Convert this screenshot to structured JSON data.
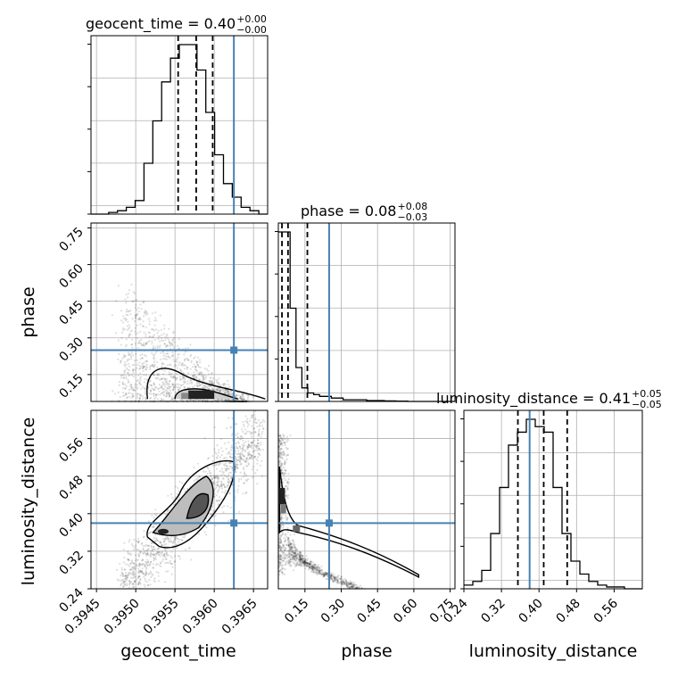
{
  "chart_data": {
    "type": "corner",
    "parameters": [
      "geocent_time",
      "phase",
      "luminosity_distance"
    ],
    "truths": {
      "geocent_time": 0.39625,
      "phase": 0.25,
      "luminosity_distance": 0.38
    },
    "titles": [
      {
        "param": "geocent_time",
        "text": "geocent_time = 0.40",
        "sup": "+0.00",
        "sub": "−0.00"
      },
      {
        "param": "phase",
        "text": "phase = 0.08",
        "sup": "+0.08",
        "sub": "−0.03"
      },
      {
        "param": "luminosity_distance",
        "text": "luminosity_distance = 0.41",
        "sup": "+0.05",
        "sub": "−0.05"
      }
    ],
    "axes": {
      "geocent_time": {
        "label": "geocent_time",
        "range": [
          0.39443,
          0.39668
        ],
        "ticks": [
          "0.3945",
          "0.3950",
          "0.3955",
          "0.3960",
          "0.3965"
        ]
      },
      "phase": {
        "label": "phase",
        "range": [
          0.04,
          0.77
        ],
        "ticks": [
          "0.15",
          "0.30",
          "0.45",
          "0.60",
          "0.75"
        ]
      },
      "luminosity_distance": {
        "label": "luminosity_distance",
        "range": [
          0.24,
          0.62
        ],
        "ticks": [
          "0.24",
          "0.32",
          "0.40",
          "0.48",
          "0.56"
        ]
      }
    },
    "quantiles": {
      "geocent_time": [
        0.39554,
        0.39577,
        0.39598
      ],
      "phase": [
        0.055,
        0.08,
        0.16
      ],
      "luminosity_distance": [
        0.355,
        0.41,
        0.46
      ]
    },
    "histograms": {
      "geocent_time": {
        "edges_range": [
          0.39443,
          0.39668
        ],
        "bins": 20,
        "counts": [
          0,
          0,
          1,
          2,
          4,
          8,
          30,
          55,
          78,
          92,
          100,
          100,
          85,
          60,
          35,
          18,
          10,
          4,
          2,
          0
        ]
      },
      "phase": {
        "edges_range": [
          0.04,
          0.77
        ],
        "bins": 30,
        "counts": [
          100,
          100,
          55,
          20,
          8,
          5,
          4,
          3,
          3,
          2,
          2,
          1,
          1,
          1,
          1,
          0.5,
          0.5,
          0.5,
          0.3,
          0.3,
          0.2,
          0.2,
          0,
          0,
          0,
          0,
          0,
          0,
          0,
          0
        ]
      },
      "luminosity_distance": {
        "edges_range": [
          0.24,
          0.62
        ],
        "bins": 20,
        "counts": [
          2,
          4,
          10,
          30,
          55,
          78,
          85,
          92,
          88,
          85,
          55,
          30,
          15,
          8,
          4,
          2,
          1,
          1,
          0,
          0
        ]
      }
    },
    "pairs": [
      {
        "x": "geocent_time",
        "y": "phase",
        "trend": "negative"
      },
      {
        "x": "geocent_time",
        "y": "luminosity_distance",
        "trend": "positive"
      },
      {
        "x": "phase",
        "y": "luminosity_distance",
        "trend": "negative-curved"
      }
    ],
    "grid": true,
    "truth_color": "#4682b4"
  }
}
